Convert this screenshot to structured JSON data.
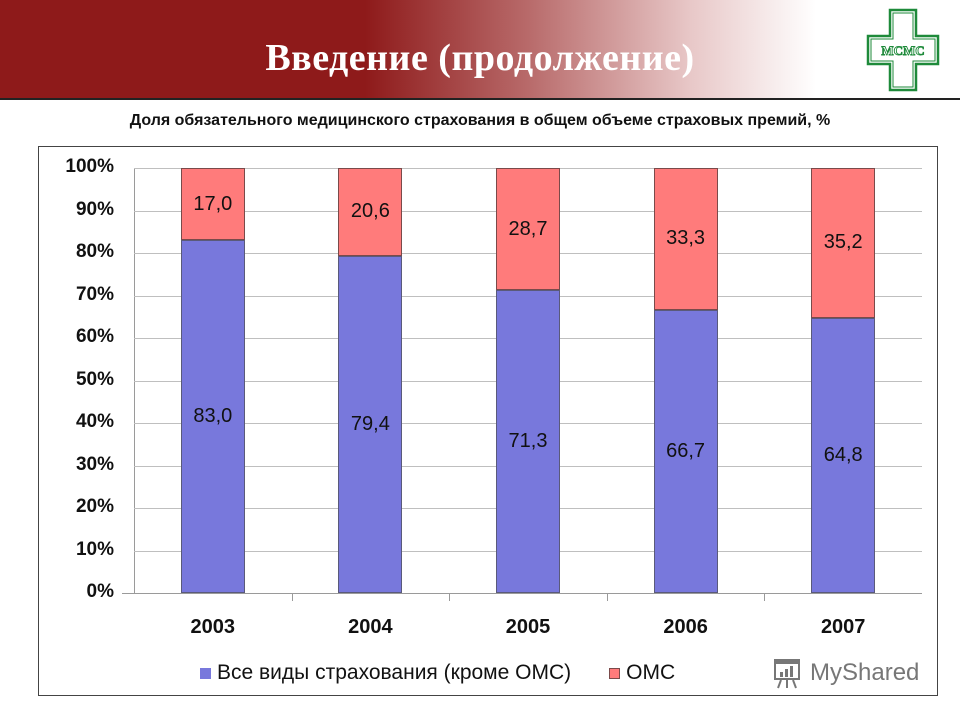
{
  "header": {
    "title": "Введение (продолжение)",
    "logo_text": "МСМС",
    "colors": {
      "banner": "#8e1a1a",
      "logo_green": "#1e8a3a"
    }
  },
  "chart_data": {
    "type": "bar",
    "stacked": true,
    "normalized": true,
    "title": "Доля обязательного медицинского страхования в общем объеме страховых премий, %",
    "xlabel": "",
    "ylabel": "",
    "categories": [
      "2003",
      "2004",
      "2005",
      "2006",
      "2007"
    ],
    "series": [
      {
        "name": "Все виды страхования (кроме ОМС)",
        "color": "#7878dc",
        "values": [
          83.0,
          79.4,
          71.3,
          66.7,
          64.8
        ],
        "labels": [
          "83,0",
          "79,4",
          "71,3",
          "66,7",
          "64,8"
        ]
      },
      {
        "name": "ОМС",
        "color": "#ff7b7b",
        "values": [
          17.0,
          20.6,
          28.7,
          33.3,
          35.2
        ],
        "labels": [
          "17,0",
          "20,6",
          "28,7",
          "33,3",
          "35,2"
        ]
      }
    ],
    "ylim": [
      0,
      100
    ],
    "yticks": [
      "0%",
      "10%",
      "20%",
      "30%",
      "40%",
      "50%",
      "60%",
      "70%",
      "80%",
      "90%",
      "100%"
    ],
    "grid": true,
    "legend_position": "bottom"
  },
  "watermark": {
    "text": "MyShared"
  }
}
